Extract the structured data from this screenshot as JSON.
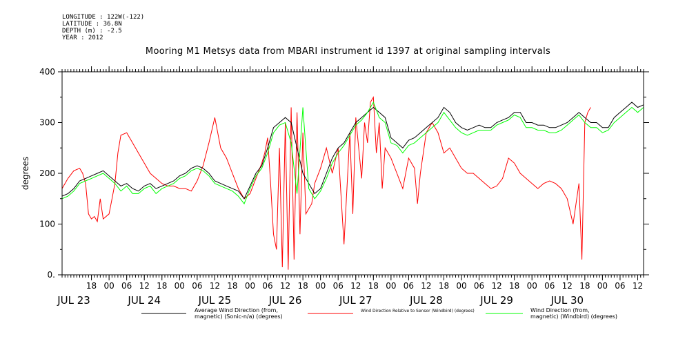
{
  "header": {
    "longitude": "LONGITUDE : 122W(-122)",
    "latitude": "LATITUDE : 36.8N",
    "depth": "DEPTH (m) : -2.5",
    "year": "YEAR : 2012"
  },
  "chart_data": {
    "type": "line",
    "title": "Mooring M1 Metsys data from MBARI instrument id 1397 at original sampling intervals",
    "ylabel": "degrees",
    "ylim": [
      0,
      400
    ],
    "yticks": [
      0,
      100,
      200,
      300,
      400
    ],
    "ytick_labels": [
      "0.",
      "100",
      "200",
      "300",
      "400"
    ],
    "x_unit": "hours since JUL 23 00:00 (2012)",
    "xlim": [
      8,
      206
    ],
    "xticks": [
      18,
      24,
      30,
      36,
      42,
      48,
      54,
      60,
      66,
      72,
      78,
      84,
      90,
      96,
      102,
      108,
      114,
      120,
      126,
      132,
      138,
      144,
      150,
      156,
      162,
      168,
      174,
      180,
      186,
      192,
      198,
      204
    ],
    "xtick_labels": [
      "18",
      "00",
      "06",
      "12",
      "18",
      "00",
      "06",
      "12",
      "18",
      "00",
      "06",
      "12",
      "18",
      "00",
      "06",
      "12",
      "18",
      "00",
      "06",
      "12",
      "18",
      "00",
      "06",
      "12",
      "18",
      "00",
      "06",
      "12",
      "18",
      "00",
      "06",
      "12"
    ],
    "day_labels": [
      {
        "x": 12,
        "label": "JUL 23"
      },
      {
        "x": 36,
        "label": "JUL 24"
      },
      {
        "x": 60,
        "label": "JUL 25"
      },
      {
        "x": 84,
        "label": "JUL 26"
      },
      {
        "x": 108,
        "label": "JUL 27"
      },
      {
        "x": 132,
        "label": "JUL 28"
      },
      {
        "x": 156,
        "label": "JUL 29"
      },
      {
        "x": 180,
        "label": "JUL 30"
      }
    ],
    "grid": false,
    "legend_position": "bottom",
    "series": [
      {
        "name": "Average Wind Direction (from, magnetic) (Sonic-n/a) (degrees)",
        "legend_lines": [
          "Average Wind Direction (from,",
          "magnetic) (Sonic-n/a) (degrees)"
        ],
        "color": "#000000",
        "x": [
          8,
          10,
          12,
          14,
          16,
          18,
          20,
          22,
          24,
          26,
          28,
          30,
          32,
          34,
          36,
          38,
          40,
          42,
          44,
          46,
          48,
          50,
          52,
          54,
          56,
          58,
          60,
          62,
          64,
          66,
          68,
          70,
          72,
          74,
          76,
          78,
          80,
          82,
          84,
          86,
          88,
          90,
          92,
          94,
          96,
          98,
          100,
          102,
          104,
          106,
          108,
          110,
          112,
          114,
          116,
          118,
          120,
          122,
          124,
          126,
          128,
          130,
          132,
          134,
          136,
          138,
          140,
          142,
          144,
          146,
          148,
          150,
          152,
          154,
          156,
          158,
          160,
          162,
          164,
          166,
          168,
          170,
          172,
          174,
          176,
          178,
          180,
          182,
          184,
          186,
          188,
          190,
          192,
          194,
          196,
          198,
          200,
          202,
          204,
          206
        ],
        "y": [
          155,
          160,
          170,
          185,
          190,
          195,
          200,
          205,
          195,
          185,
          175,
          180,
          170,
          165,
          175,
          180,
          170,
          175,
          180,
          185,
          195,
          200,
          210,
          215,
          210,
          200,
          185,
          180,
          175,
          170,
          165,
          150,
          175,
          200,
          215,
          250,
          290,
          300,
          310,
          300,
          250,
          200,
          180,
          160,
          170,
          200,
          230,
          250,
          260,
          280,
          300,
          310,
          320,
          330,
          320,
          310,
          270,
          260,
          250,
          265,
          270,
          280,
          290,
          300,
          310,
          330,
          320,
          300,
          290,
          285,
          290,
          295,
          290,
          290,
          300,
          305,
          310,
          320,
          320,
          300,
          300,
          295,
          295,
          290,
          290,
          295,
          300,
          310,
          320,
          310,
          300,
          300,
          290,
          290,
          310,
          320,
          330,
          340,
          330,
          335
        ]
      },
      {
        "name": "Wind Direction Relative to Sensor (Windbird) (degrees)",
        "legend_lines": [
          "Wind Direction Relative to Sensor (Windbird) (degrees)"
        ],
        "color": "#ff0000",
        "x": [
          8,
          10,
          12,
          14,
          15,
          16,
          17,
          18,
          19,
          20,
          21,
          22,
          24,
          25,
          26,
          27,
          28,
          30,
          32,
          34,
          36,
          38,
          40,
          42,
          44,
          46,
          48,
          50,
          52,
          54,
          56,
          58,
          60,
          62,
          64,
          66,
          68,
          70,
          72,
          74,
          76,
          77,
          78,
          79,
          80,
          81,
          82,
          83,
          84,
          85,
          86,
          87,
          88,
          89,
          90,
          91,
          92,
          93,
          94,
          96,
          98,
          100,
          102,
          104,
          106,
          107,
          108,
          109,
          110,
          111,
          112,
          113,
          114,
          115,
          116,
          117,
          118,
          120,
          122,
          124,
          126,
          128,
          129,
          130,
          132,
          134,
          136,
          138,
          140,
          142,
          144,
          146,
          148,
          150,
          152,
          154,
          156,
          158,
          160,
          162,
          164,
          166,
          168,
          170,
          172,
          174,
          176,
          178,
          180,
          182,
          184,
          185,
          186,
          187,
          188
        ],
        "y": [
          170,
          190,
          205,
          210,
          200,
          180,
          120,
          110,
          115,
          105,
          150,
          110,
          120,
          150,
          180,
          240,
          275,
          280,
          260,
          240,
          220,
          200,
          190,
          180,
          175,
          175,
          170,
          170,
          165,
          185,
          215,
          260,
          310,
          250,
          230,
          200,
          170,
          150,
          160,
          190,
          220,
          240,
          270,
          180,
          80,
          50,
          250,
          15,
          300,
          10,
          330,
          30,
          320,
          80,
          280,
          120,
          130,
          140,
          180,
          210,
          250,
          200,
          250,
          60,
          280,
          120,
          310,
          250,
          190,
          300,
          260,
          340,
          350,
          240,
          300,
          170,
          250,
          230,
          200,
          170,
          230,
          210,
          140,
          200,
          280,
          300,
          280,
          240,
          250,
          230,
          210,
          200,
          200,
          190,
          180,
          170,
          175,
          190,
          230,
          220,
          200,
          190,
          180,
          170,
          180,
          185,
          180,
          170,
          150,
          100,
          180,
          30,
          300,
          320,
          330
        ]
      },
      {
        "name": "Wind Direction (from, magnetic) (Windbird) (degrees)",
        "legend_lines": [
          "Wind Direction (from,",
          "magnetic) (Windbird) (degrees)"
        ],
        "color": "#00ff00",
        "x": [
          8,
          10,
          12,
          14,
          16,
          18,
          20,
          22,
          24,
          26,
          28,
          30,
          32,
          34,
          36,
          38,
          40,
          42,
          44,
          46,
          48,
          50,
          52,
          54,
          56,
          58,
          60,
          62,
          64,
          66,
          68,
          70,
          72,
          74,
          76,
          78,
          80,
          82,
          84,
          86,
          88,
          90,
          92,
          94,
          96,
          98,
          100,
          102,
          104,
          106,
          108,
          110,
          112,
          114,
          116,
          118,
          120,
          122,
          124,
          126,
          128,
          130,
          132,
          134,
          136,
          138,
          140,
          142,
          144,
          146,
          148,
          150,
          152,
          154,
          156,
          158,
          160,
          162,
          164,
          166,
          168,
          170,
          172,
          174,
          176,
          178,
          180,
          182,
          184,
          186,
          188,
          190,
          192,
          194,
          196,
          198,
          200,
          202,
          204,
          206
        ],
        "y": [
          150,
          155,
          165,
          180,
          185,
          190,
          195,
          200,
          190,
          180,
          165,
          175,
          160,
          160,
          170,
          175,
          160,
          170,
          175,
          180,
          190,
          195,
          205,
          210,
          205,
          195,
          180,
          175,
          170,
          165,
          155,
          140,
          170,
          195,
          210,
          240,
          280,
          295,
          300,
          260,
          160,
          330,
          170,
          150,
          165,
          190,
          220,
          240,
          255,
          275,
          295,
          305,
          320,
          340,
          310,
          300,
          260,
          255,
          240,
          255,
          260,
          270,
          280,
          290,
          300,
          320,
          305,
          290,
          280,
          275,
          280,
          285,
          285,
          285,
          295,
          300,
          305,
          315,
          310,
          290,
          290,
          285,
          285,
          280,
          280,
          285,
          295,
          305,
          315,
          300,
          290,
          290,
          280,
          285,
          300,
          310,
          320,
          330,
          320,
          330
        ]
      }
    ]
  }
}
